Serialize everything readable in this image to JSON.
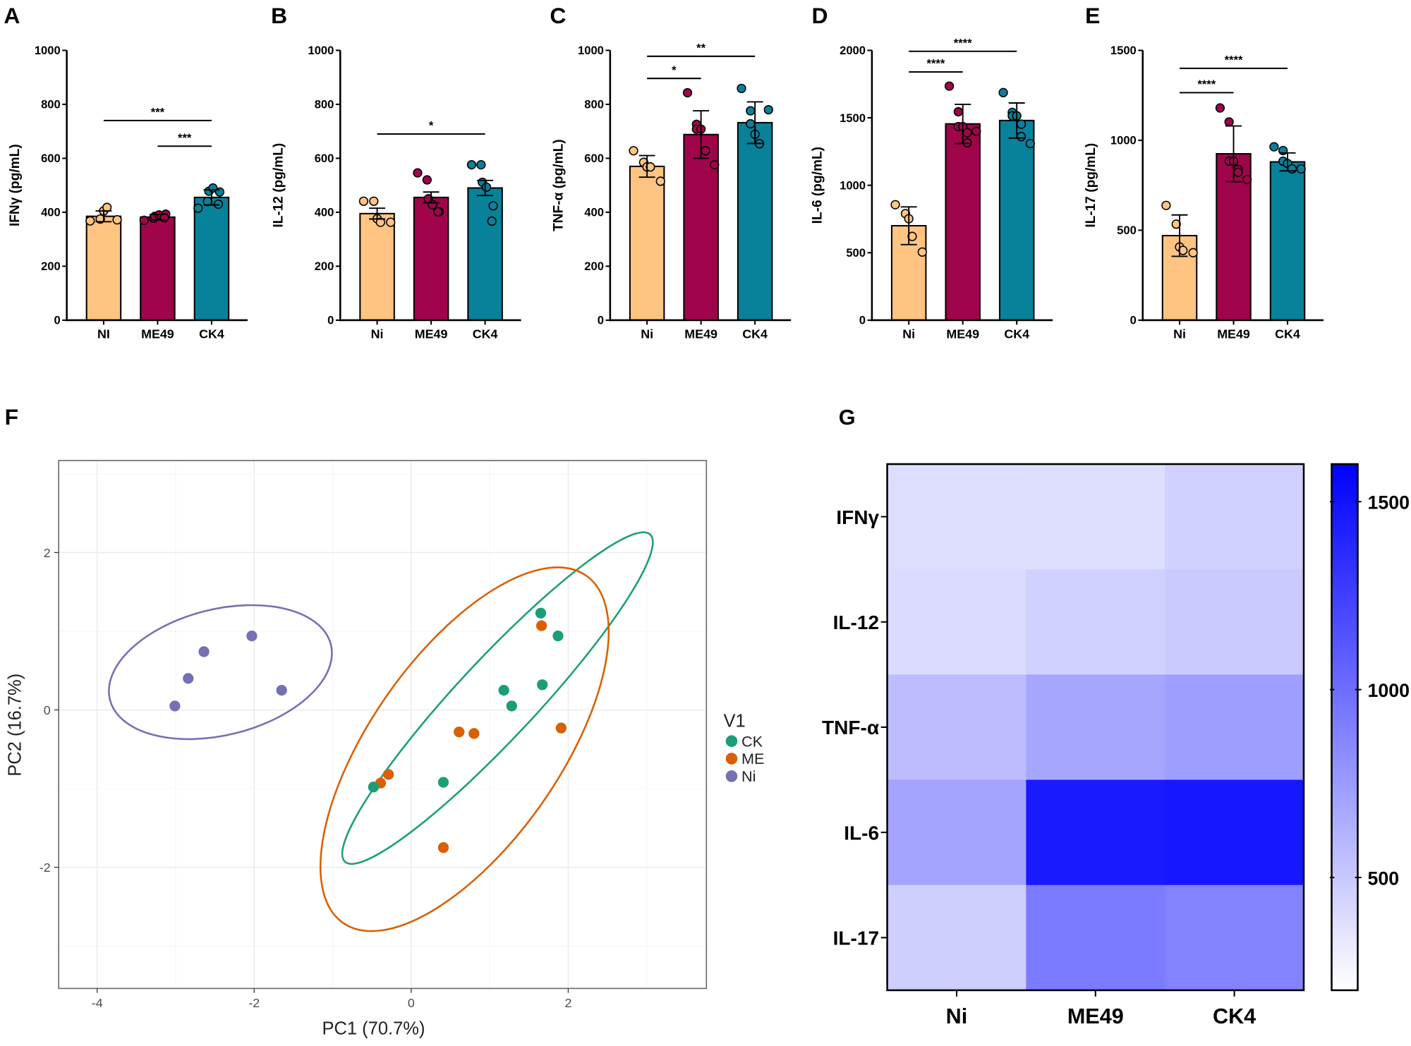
{
  "chart_data": [
    {
      "type": "bar",
      "panel_label": "A",
      "ylabel": "IFNγ (pg/mL)",
      "categories": [
        "NI",
        "ME49",
        "CK4"
      ],
      "ylim": [
        0,
        1000
      ],
      "yticks": [
        "0",
        "200",
        "400",
        "600",
        "800",
        "1000"
      ],
      "values": [
        385,
        382,
        455
      ],
      "errors": [
        20,
        10,
        28
      ],
      "points": [
        [
          368,
          375,
          405,
          418,
          372
        ],
        [
          370,
          378,
          385,
          390,
          393,
          380
        ],
        [
          415,
          440,
          478,
          490,
          475,
          430
        ]
      ],
      "significance": [
        {
          "from": 0,
          "to": 2,
          "y": 740,
          "label": "***"
        },
        {
          "from": 1,
          "to": 2,
          "y": 645,
          "label": "***"
        }
      ]
    },
    {
      "type": "bar",
      "panel_label": "B",
      "ylabel": "IL-12 (pg/mL)",
      "categories": [
        "Ni",
        "ME49",
        "CK4"
      ],
      "ylim": [
        0,
        1000
      ],
      "yticks": [
        "0",
        "200",
        "400",
        "600",
        "800",
        "1000"
      ],
      "values": [
        395,
        455,
        490
      ],
      "errors": [
        20,
        20,
        28
      ],
      "points": [
        [
          441,
          441,
          376,
          363,
          363
        ],
        [
          546,
          520,
          450,
          428,
          402,
          402
        ],
        [
          576,
          576,
          511,
          493,
          424,
          367
        ]
      ],
      "significance": [
        {
          "from": 0,
          "to": 2,
          "y": 690,
          "label": "*"
        }
      ]
    },
    {
      "type": "bar",
      "panel_label": "C",
      "ylabel": "TNF-α (pg/mL)",
      "categories": [
        "Ni",
        "ME49",
        "CK4"
      ],
      "ylim": [
        0,
        1000
      ],
      "yticks": [
        "0",
        "200",
        "400",
        "600",
        "800",
        "1000"
      ],
      "values": [
        570,
        688,
        732
      ],
      "errors": [
        40,
        88,
        77
      ],
      "points": [
        [
          628,
          585,
          568,
          568,
          515
        ],
        [
          843,
          726,
          708,
          708,
          628,
          628,
          576
        ],
        [
          859,
          776,
          728,
          689,
          654,
          654,
          780
        ]
      ],
      "significance": [
        {
          "from": 0,
          "to": 2,
          "y": 978,
          "label": "**"
        },
        {
          "from": 0,
          "to": 1,
          "y": 896,
          "label": "*"
        }
      ]
    },
    {
      "type": "bar",
      "panel_label": "D",
      "ylabel": "IL-6 (pg/mL)",
      "categories": [
        "Ni",
        "ME49",
        "CK4"
      ],
      "ylim": [
        0,
        2000
      ],
      "yticks": [
        "0",
        "500",
        "1000",
        "1500",
        "2000"
      ],
      "values": [
        700,
        1455,
        1480
      ],
      "errors": [
        140,
        145,
        130
      ],
      "points": [
        [
          856,
          790,
          752,
          621,
          505
        ],
        [
          1735,
          1545,
          1435,
          1435,
          1390,
          1315,
          1400
        ],
        [
          1687,
          1540,
          1515,
          1515,
          1453,
          1361,
          1309
        ]
      ],
      "significance": [
        {
          "from": 0,
          "to": 2,
          "y": 1993,
          "label": "****"
        },
        {
          "from": 0,
          "to": 1,
          "y": 1840,
          "label": "****"
        }
      ]
    },
    {
      "type": "bar",
      "panel_label": "E",
      "ylabel": "IL-17 (pg/mL)",
      "categories": [
        "Ni",
        "ME49",
        "CK4"
      ],
      "ylim": [
        0,
        1500
      ],
      "yticks": [
        "0",
        "500",
        "1000",
        "1500"
      ],
      "values": [
        470,
        925,
        880
      ],
      "errors": [
        115,
        155,
        50
      ],
      "points": [
        [
          638,
          534,
          407,
          388,
          375
        ],
        [
          1180,
          1102,
          884,
          884,
          838,
          822,
          782
        ],
        [
          964,
          943,
          884,
          871,
          841,
          841,
          841
        ]
      ],
      "significance": [
        {
          "from": 0,
          "to": 2,
          "y": 1400,
          "label": "****"
        },
        {
          "from": 0,
          "to": 1,
          "y": 1265,
          "label": "****"
        }
      ]
    },
    {
      "type": "scatter",
      "panel_label": "F",
      "xlabel": "PC1 (70.7%)",
      "ylabel": "PC2 (16.7%)",
      "xlim": [
        -4.49,
        3.76
      ],
      "ylim": [
        -3.54,
        3.17
      ],
      "xticks": [
        "-4",
        "-2",
        "0",
        "2"
      ],
      "yticks": [
        "-2",
        "0",
        "2"
      ],
      "grid": true,
      "legend_title": "V1",
      "legend_position": "right",
      "groups": [
        {
          "name": "CK",
          "color": "#1b9e77",
          "points": [
            [
              1.65,
              1.23
            ],
            [
              1.87,
              0.94
            ],
            [
              1.18,
              0.25
            ],
            [
              1.28,
              0.05
            ],
            [
              1.67,
              0.32
            ],
            [
              0.41,
              -0.92
            ],
            [
              -0.48,
              -0.98
            ]
          ],
          "ellipse": {
            "cx": 1.1,
            "cy": 0.15,
            "rx": 2.85,
            "ry": 0.5,
            "angle": 47
          }
        },
        {
          "name": "ME",
          "color": "#d95f02",
          "points": [
            [
              1.66,
              1.07
            ],
            [
              1.91,
              -0.23
            ],
            [
              0.61,
              -0.28
            ],
            [
              0.8,
              -0.3
            ],
            [
              -0.29,
              -0.82
            ],
            [
              -0.39,
              -0.93
            ],
            [
              0.41,
              -1.75
            ]
          ],
          "ellipse": {
            "cx": 0.68,
            "cy": -0.5,
            "rx": 2.7,
            "ry": 1.2,
            "angle": 55
          }
        },
        {
          "name": "Ni",
          "color": "#7570b3",
          "points": [
            [
              -3.01,
              0.05
            ],
            [
              -2.84,
              0.4
            ],
            [
              -2.64,
              0.74
            ],
            [
              -2.03,
              0.94
            ],
            [
              -1.65,
              0.25
            ]
          ],
          "ellipse": {
            "cx": -2.43,
            "cy": 0.48,
            "rx": 1.45,
            "ry": 0.8,
            "angle": 14
          }
        }
      ]
    },
    {
      "type": "heatmap",
      "panel_label": "G",
      "rows": [
        "IFNγ",
        "IL-12",
        "TNF-α",
        "IL-6",
        "IL-17"
      ],
      "columns": [
        "Ni",
        "ME49",
        "CK4"
      ],
      "values": [
        [
          385,
          382,
          455
        ],
        [
          395,
          455,
          490
        ],
        [
          570,
          688,
          732
        ],
        [
          700,
          1455,
          1480
        ],
        [
          470,
          925,
          880
        ]
      ],
      "colorbar": {
        "range": [
          200,
          1600
        ],
        "ticks": [
          "500",
          "1000",
          "1500"
        ],
        "low_color": "#ffffff",
        "high_color": "#0000ff"
      }
    }
  ],
  "colors": {
    "Ni": "#ffc482",
    "ME49": "#a0044b",
    "CK4": "#08819a"
  }
}
